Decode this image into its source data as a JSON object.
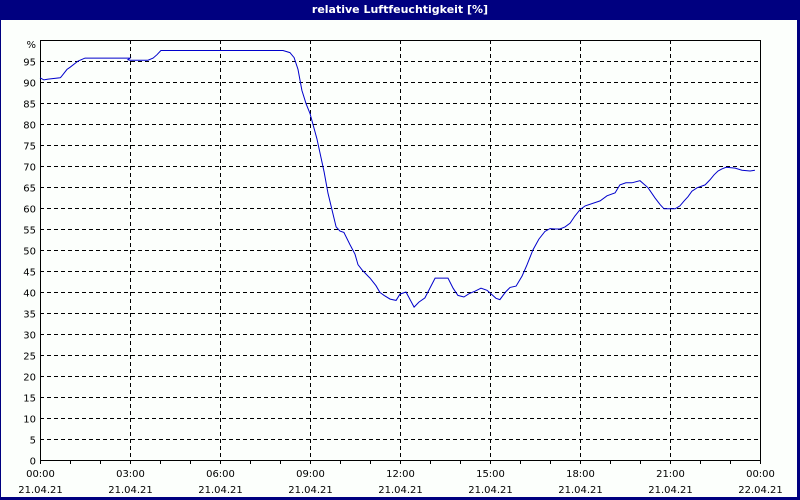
{
  "window": {
    "title": "relative Luftfeuchtigkeit [%]"
  },
  "chart_data": {
    "type": "line",
    "title": "relative Luftfeuchtigkeit [%]",
    "xlabel": "",
    "ylabel": "%",
    "ylim": [
      0,
      100
    ],
    "xlim_hours": [
      0,
      24
    ],
    "grid": true,
    "y_ticks": [
      0,
      5,
      10,
      15,
      20,
      25,
      30,
      35,
      40,
      45,
      50,
      55,
      60,
      65,
      70,
      75,
      80,
      85,
      90,
      95
    ],
    "y_unit_label": "%",
    "x_ticks": [
      {
        "hour": 0,
        "time": "00:00",
        "date": "21.04.21"
      },
      {
        "hour": 3,
        "time": "03:00",
        "date": "21.04.21"
      },
      {
        "hour": 6,
        "time": "06:00",
        "date": "21.04.21"
      },
      {
        "hour": 9,
        "time": "09:00",
        "date": "21.04.21"
      },
      {
        "hour": 12,
        "time": "12:00",
        "date": "21.04.21"
      },
      {
        "hour": 15,
        "time": "15:00",
        "date": "21.04.21"
      },
      {
        "hour": 18,
        "time": "18:00",
        "date": "21.04.21"
      },
      {
        "hour": 21,
        "time": "21:00",
        "date": "21.04.21"
      },
      {
        "hour": 24,
        "time": "00:00",
        "date": "22.04.21"
      }
    ],
    "series": [
      {
        "name": "relative Luftfeuchtigkeit",
        "color": "#0000cc",
        "x_hours": [
          0,
          0.13,
          0.27,
          0.67,
          0.7,
          0.9,
          1.0,
          1.27,
          1.5,
          2.0,
          3.0,
          2.93,
          3.0,
          3.6,
          3.77,
          3.9,
          4.03,
          5.0,
          6.0,
          7.0,
          8.1,
          8.33,
          8.47,
          8.6,
          8.73,
          8.87,
          9.0,
          9.23,
          9.47,
          9.6,
          9.87,
          10.0,
          10.13,
          10.33,
          10.5,
          10.6,
          10.73,
          10.93,
          11.0,
          11.2,
          11.33,
          11.47,
          11.67,
          11.87,
          12.0,
          12.2,
          12.47,
          12.63,
          12.83,
          13.17,
          13.6,
          13.77,
          13.93,
          14.13,
          14.3,
          14.5,
          14.7,
          14.9,
          15.2,
          15.33,
          15.53,
          15.67,
          15.87,
          16.07,
          16.23,
          16.43,
          16.63,
          16.83,
          17.0,
          17.17,
          17.33,
          17.5,
          17.67,
          17.83,
          18.0,
          18.17,
          18.67,
          18.9,
          19.17,
          19.33,
          19.53,
          19.73,
          20.0,
          20.27,
          20.5,
          20.67,
          20.8,
          21.17,
          21.33,
          21.47,
          21.6,
          21.73,
          21.9,
          22.17,
          22.33,
          22.47,
          22.6,
          22.73,
          22.87,
          23.17,
          23.4,
          23.67,
          23.83
        ],
        "values": [
          91.0,
          90.5,
          90.7,
          91.0,
          91.2,
          93.0,
          93.5,
          95.0,
          95.7,
          95.7,
          95.7,
          95.3,
          95.2,
          95.2,
          95.7,
          96.5,
          97.5,
          97.5,
          97.5,
          97.5,
          97.5,
          97.0,
          95.8,
          93.0,
          88.0,
          84.8,
          82.5,
          76.5,
          68.6,
          63.5,
          55.5,
          54.5,
          54.2,
          51.3,
          49.0,
          46.5,
          45.3,
          43.8,
          43.3,
          41.5,
          39.9,
          39.2,
          38.3,
          38.0,
          39.5,
          40.0,
          36.4,
          37.6,
          38.6,
          43.3,
          43.3,
          40.9,
          39.2,
          38.8,
          39.6,
          40.2,
          40.9,
          40.4,
          38.5,
          38.2,
          40.1,
          41.1,
          41.4,
          43.8,
          46.4,
          50.0,
          52.6,
          54.4,
          55.1,
          55.0,
          55.0,
          55.5,
          56.4,
          58.1,
          59.6,
          60.5,
          61.7,
          62.9,
          63.6,
          65.5,
          66.0,
          66.0,
          66.5,
          64.8,
          62.4,
          60.8,
          59.8,
          59.8,
          60.5,
          61.7,
          62.7,
          64.0,
          64.8,
          65.5,
          66.7,
          67.9,
          68.8,
          69.3,
          69.7,
          69.5,
          69.0,
          68.8,
          69.0
        ]
      }
    ]
  }
}
